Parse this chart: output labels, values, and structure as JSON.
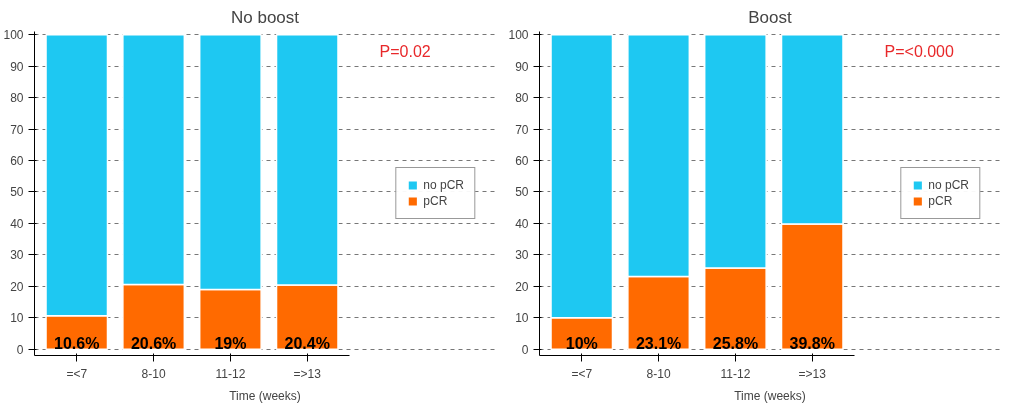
{
  "chart_data": [
    {
      "type": "bar",
      "title": "No boost",
      "xlabel": "Time (weeks)",
      "categories": [
        "=<7",
        "8-10",
        "11-12",
        "=>13"
      ],
      "stacked": true,
      "series": [
        {
          "name": "pCR",
          "color": "#ff6a00",
          "values": [
            10.6,
            20.6,
            19,
            20.4
          ],
          "value_labels": [
            "10.6%",
            "20.6%",
            "19%",
            "20.4%"
          ]
        },
        {
          "name": "no pCR",
          "color": "#1ec8f2",
          "values": [
            89.4,
            79.4,
            81,
            79.6
          ]
        }
      ],
      "ylim": [
        -2,
        101
      ],
      "yticks": [
        0,
        10,
        20,
        30,
        40,
        50,
        60,
        70,
        80,
        90,
        100
      ],
      "grid": "y",
      "legend": "right",
      "annotations": [
        "P=0.02"
      ]
    },
    {
      "type": "bar",
      "title": "Boost",
      "xlabel": "Time (weeks)",
      "categories": [
        "=<7",
        "8-10",
        "11-12",
        "=>13"
      ],
      "stacked": true,
      "series": [
        {
          "name": "pCR",
          "color": "#ff6a00",
          "values": [
            10,
            23.1,
            25.8,
            39.8
          ],
          "value_labels": [
            "10%",
            "23.1%",
            "25.8%",
            "39.8%"
          ]
        },
        {
          "name": "no pCR",
          "color": "#1ec8f2",
          "values": [
            90,
            76.9,
            74.2,
            60.2
          ]
        }
      ],
      "ylim": [
        -2,
        101
      ],
      "yticks": [
        0,
        10,
        20,
        30,
        40,
        50,
        60,
        70,
        80,
        90,
        100
      ],
      "grid": "y",
      "legend": "right",
      "annotations": [
        "P=<0.000"
      ]
    }
  ]
}
